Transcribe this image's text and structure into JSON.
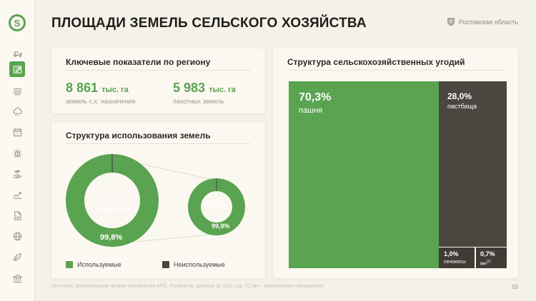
{
  "page": {
    "title": "ПЛОЩАДИ ЗЕМЕЛЬ СЕЛЬСКОГО ХОЗЯЙСТВА",
    "region": "Ростовская область",
    "footer": "Источник: региональные органы управления АПК, Росреестр. Данные за 2021 год. (1) мн – многолетние насаждения",
    "page_number": "03"
  },
  "sidebar": {
    "logo_letter": "S",
    "icons": [
      "tractor-icon",
      "dashboard-icon",
      "field-icon",
      "weather-icon",
      "calendar-icon",
      "bug-icon",
      "hand-seedling-icon",
      "growth-chart-icon",
      "report-icon",
      "globe-icon",
      "leaf-icon",
      "institution-icon"
    ],
    "active_index": 1
  },
  "kpi": {
    "title": "Ключевые показатели по региону",
    "items": [
      {
        "value": "8 861",
        "unit": "тыс. га",
        "label": "земель с.х. назначения"
      },
      {
        "value": "5 983",
        "unit": "тыс. га",
        "label": "пахотных земель"
      }
    ]
  },
  "usage": {
    "title": "Структура использования земель",
    "donuts": [
      {
        "label_line1": "Земли с.х.",
        "label_line2": "назначения",
        "percent_text": "99,8%",
        "used": 99.8
      },
      {
        "label_line1": "Пашня",
        "label_line2": "",
        "percent_text": "99,9%",
        "used": 99.9
      }
    ],
    "legend": [
      {
        "label": "Используемые",
        "color": "#5aa350"
      },
      {
        "label": "Неиспользуемые",
        "color": "#4b4740"
      }
    ]
  },
  "structure": {
    "title": "Структура сельскохозяйственных угодий",
    "blocks": [
      {
        "percent": "70,3%",
        "label": "пашня",
        "color": "#5aa350"
      },
      {
        "percent": "28,0%",
        "label": "пастбища",
        "color": "#4b4740"
      },
      {
        "percent": "1,0%",
        "label": "сенокосы",
        "color": "#3f3b35"
      },
      {
        "percent": "0,7%",
        "label": "мн",
        "label_sup": "(1)",
        "color": "#3f3b35"
      }
    ]
  },
  "colors": {
    "accent": "#5aa350",
    "dark": "#4b4740",
    "background": "#f4f1e6",
    "card": "#faf8f0"
  }
}
